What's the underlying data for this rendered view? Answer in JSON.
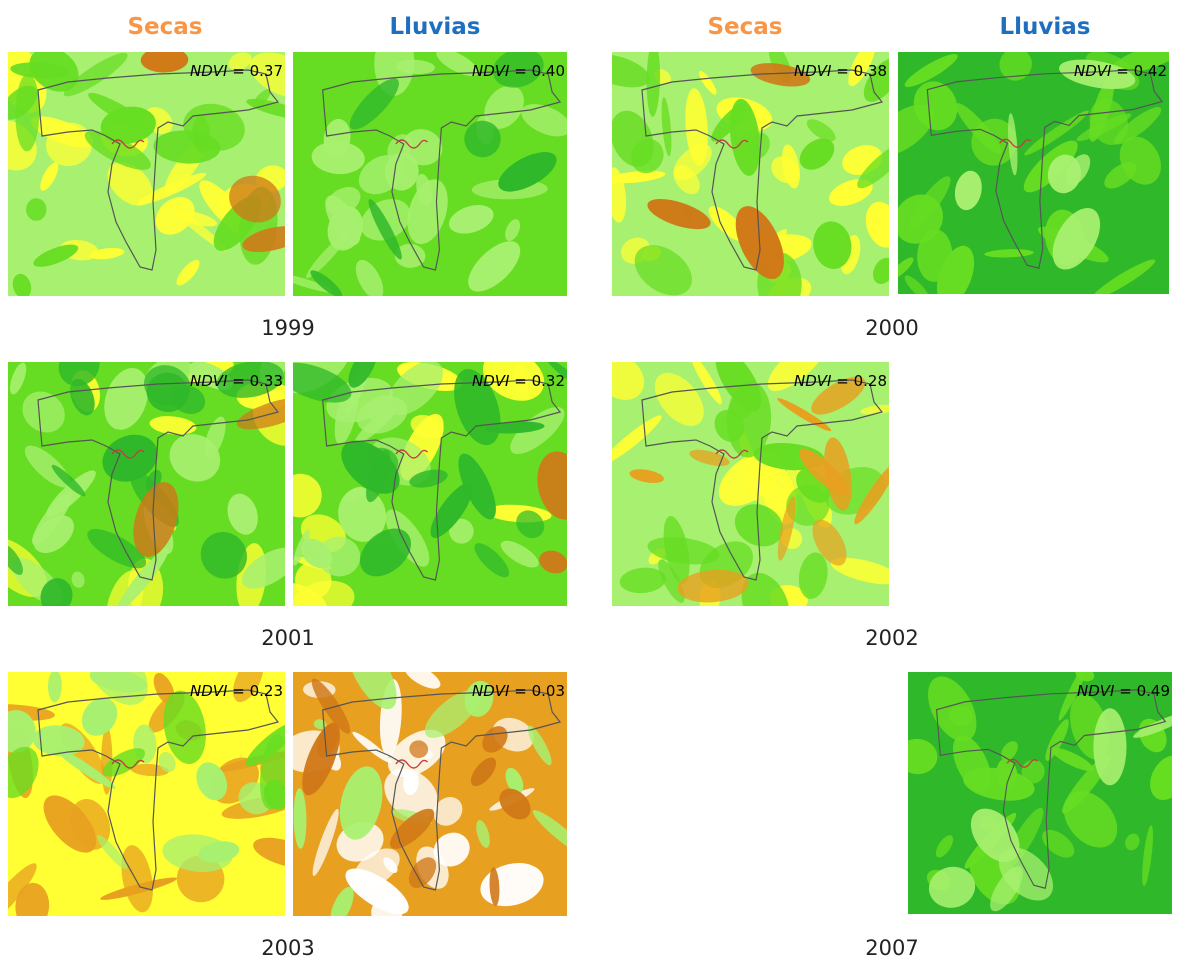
{
  "headers": [
    {
      "label": "Secas",
      "season": "dry"
    },
    {
      "label": "Lluvias",
      "season": "wet"
    },
    {
      "label": "Secas",
      "season": "dry"
    },
    {
      "label": "Lluvias",
      "season": "wet"
    }
  ],
  "ndvi_label": "NDVI",
  "ndvi_equals": " = ",
  "panels": [
    {
      "year": "1999",
      "season": "Secas",
      "ndvi": "0.37",
      "palette": "dry-mixed"
    },
    {
      "year": "1999",
      "season": "Lluvias",
      "ndvi": "0.40",
      "palette": "green-light"
    },
    {
      "year": "2000",
      "season": "Secas",
      "ndvi": "0.38",
      "palette": "dry-mixed"
    },
    {
      "year": "2000",
      "season": "Lluvias",
      "ndvi": "0.42",
      "palette": "green-dense"
    },
    {
      "year": "2001",
      "season": "Secas",
      "ndvi": "0.33",
      "palette": "green-mixed"
    },
    {
      "year": "2001",
      "season": "Lluvias",
      "ndvi": "0.32",
      "palette": "green-mixed"
    },
    {
      "year": "2002",
      "season": "Secas",
      "ndvi": "0.28",
      "palette": "dry-orange"
    },
    {
      "year": "2003",
      "season": "Secas",
      "ndvi": "0.23",
      "palette": "orange-yellow"
    },
    {
      "year": "2003",
      "season": "Lluvias",
      "ndvi": "0.03",
      "palette": "orange-white"
    },
    {
      "year": "2007",
      "season": "Lluvias",
      "ndvi": "0.49",
      "palette": "green-dense"
    }
  ],
  "years": [
    "1999",
    "2000",
    "2001",
    "2002",
    "2003",
    "2007"
  ],
  "colors": {
    "yellow": "#ffff33",
    "light_green": "#a8f070",
    "green": "#66dd22",
    "dark_green": "#2fb82a",
    "orange": "#e8a020",
    "dark_orange": "#d07818",
    "boundary": "#555555"
  }
}
